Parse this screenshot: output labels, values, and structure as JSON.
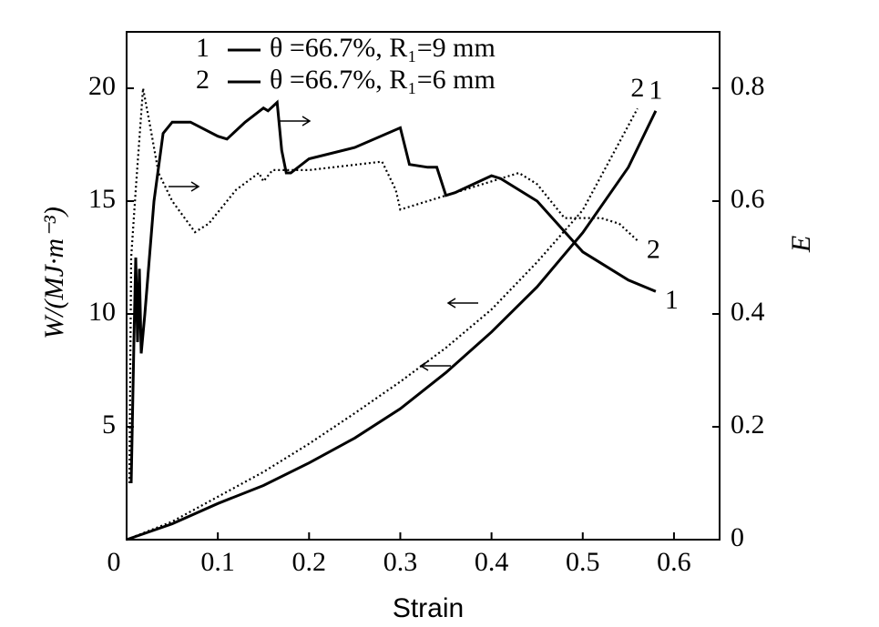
{
  "chart_data": {
    "type": "line",
    "x_label": "Strain",
    "y_label": "W/(MJ·m⁻³)",
    "y2_label": "E",
    "xlim": [
      0,
      0.65
    ],
    "xticks": [
      0,
      0.1,
      0.2,
      0.3,
      0.4,
      0.5,
      0.6
    ],
    "ylim": [
      0,
      22.5
    ],
    "yticks": [
      5,
      10,
      15,
      20
    ],
    "y2lim": [
      0,
      0.9
    ],
    "y2ticks": [
      0,
      0.2,
      0.4,
      0.6,
      0.8
    ],
    "legend": [
      {
        "number": "1",
        "text": "θ =66.7%, R₁=9 mm"
      },
      {
        "number": "2",
        "text": "θ =66.7%, R₁=6 mm"
      }
    ],
    "series": [
      {
        "label": "1",
        "color": "#000000",
        "dash": "solid",
        "x": [
          0,
          0.05,
          0.1,
          0.15,
          0.2,
          0.25,
          0.3,
          0.35,
          0.4,
          0.45,
          0.5,
          0.55,
          0.58
        ],
        "values": [
          0,
          0.7,
          1.6,
          2.4,
          3.4,
          4.5,
          5.8,
          7.4,
          9.2,
          11.2,
          13.6,
          16.5,
          19
        ]
      },
      {
        "label": "2",
        "color": "#000000",
        "dash": "dotted",
        "x": [
          0,
          0.05,
          0.1,
          0.15,
          0.2,
          0.25,
          0.3,
          0.35,
          0.4,
          0.45,
          0.5,
          0.56
        ],
        "values": [
          0,
          0.8,
          1.9,
          3.0,
          4.25,
          5.6,
          7.0,
          8.5,
          10.2,
          12.3,
          14.6,
          19.1
        ]
      },
      {
        "label": "1",
        "color": "#000000",
        "dash": "solid",
        "axis": "y2",
        "x": [
          0.005,
          0.008,
          0.01,
          0.012,
          0.014,
          0.016,
          0.02,
          0.03,
          0.04,
          0.05,
          0.07,
          0.1,
          0.11,
          0.13,
          0.15,
          0.155,
          0.165,
          0.17,
          0.175,
          0.18,
          0.2,
          0.25,
          0.3,
          0.31,
          0.33,
          0.34,
          0.35,
          0.36,
          0.4,
          0.41,
          0.45,
          0.5,
          0.52,
          0.55,
          0.58
        ],
        "values": [
          0.1,
          0.35,
          0.5,
          0.35,
          0.48,
          0.33,
          0.4,
          0.6,
          0.72,
          0.74,
          0.74,
          0.715,
          0.71,
          0.74,
          0.765,
          0.76,
          0.775,
          0.69,
          0.65,
          0.65,
          0.675,
          0.695,
          0.73,
          0.665,
          0.66,
          0.66,
          0.61,
          0.615,
          0.645,
          0.64,
          0.6,
          0.51,
          0.49,
          0.46,
          0.44
        ]
      },
      {
        "label": "2",
        "color": "#000000",
        "dash": "dotted",
        "axis": "y2",
        "x": [
          0.003,
          0.005,
          0.01,
          0.018,
          0.025,
          0.035,
          0.05,
          0.075,
          0.09,
          0.12,
          0.145,
          0.15,
          0.16,
          0.2,
          0.28,
          0.295,
          0.3,
          0.35,
          0.4,
          0.43,
          0.45,
          0.48,
          0.52,
          0.54,
          0.56
        ],
        "values": [
          0.1,
          0.5,
          0.62,
          0.8,
          0.74,
          0.65,
          0.6,
          0.545,
          0.56,
          0.62,
          0.65,
          0.635,
          0.655,
          0.655,
          0.67,
          0.62,
          0.585,
          0.61,
          0.635,
          0.65,
          0.63,
          0.57,
          0.57,
          0.56,
          0.53
        ]
      }
    ]
  }
}
